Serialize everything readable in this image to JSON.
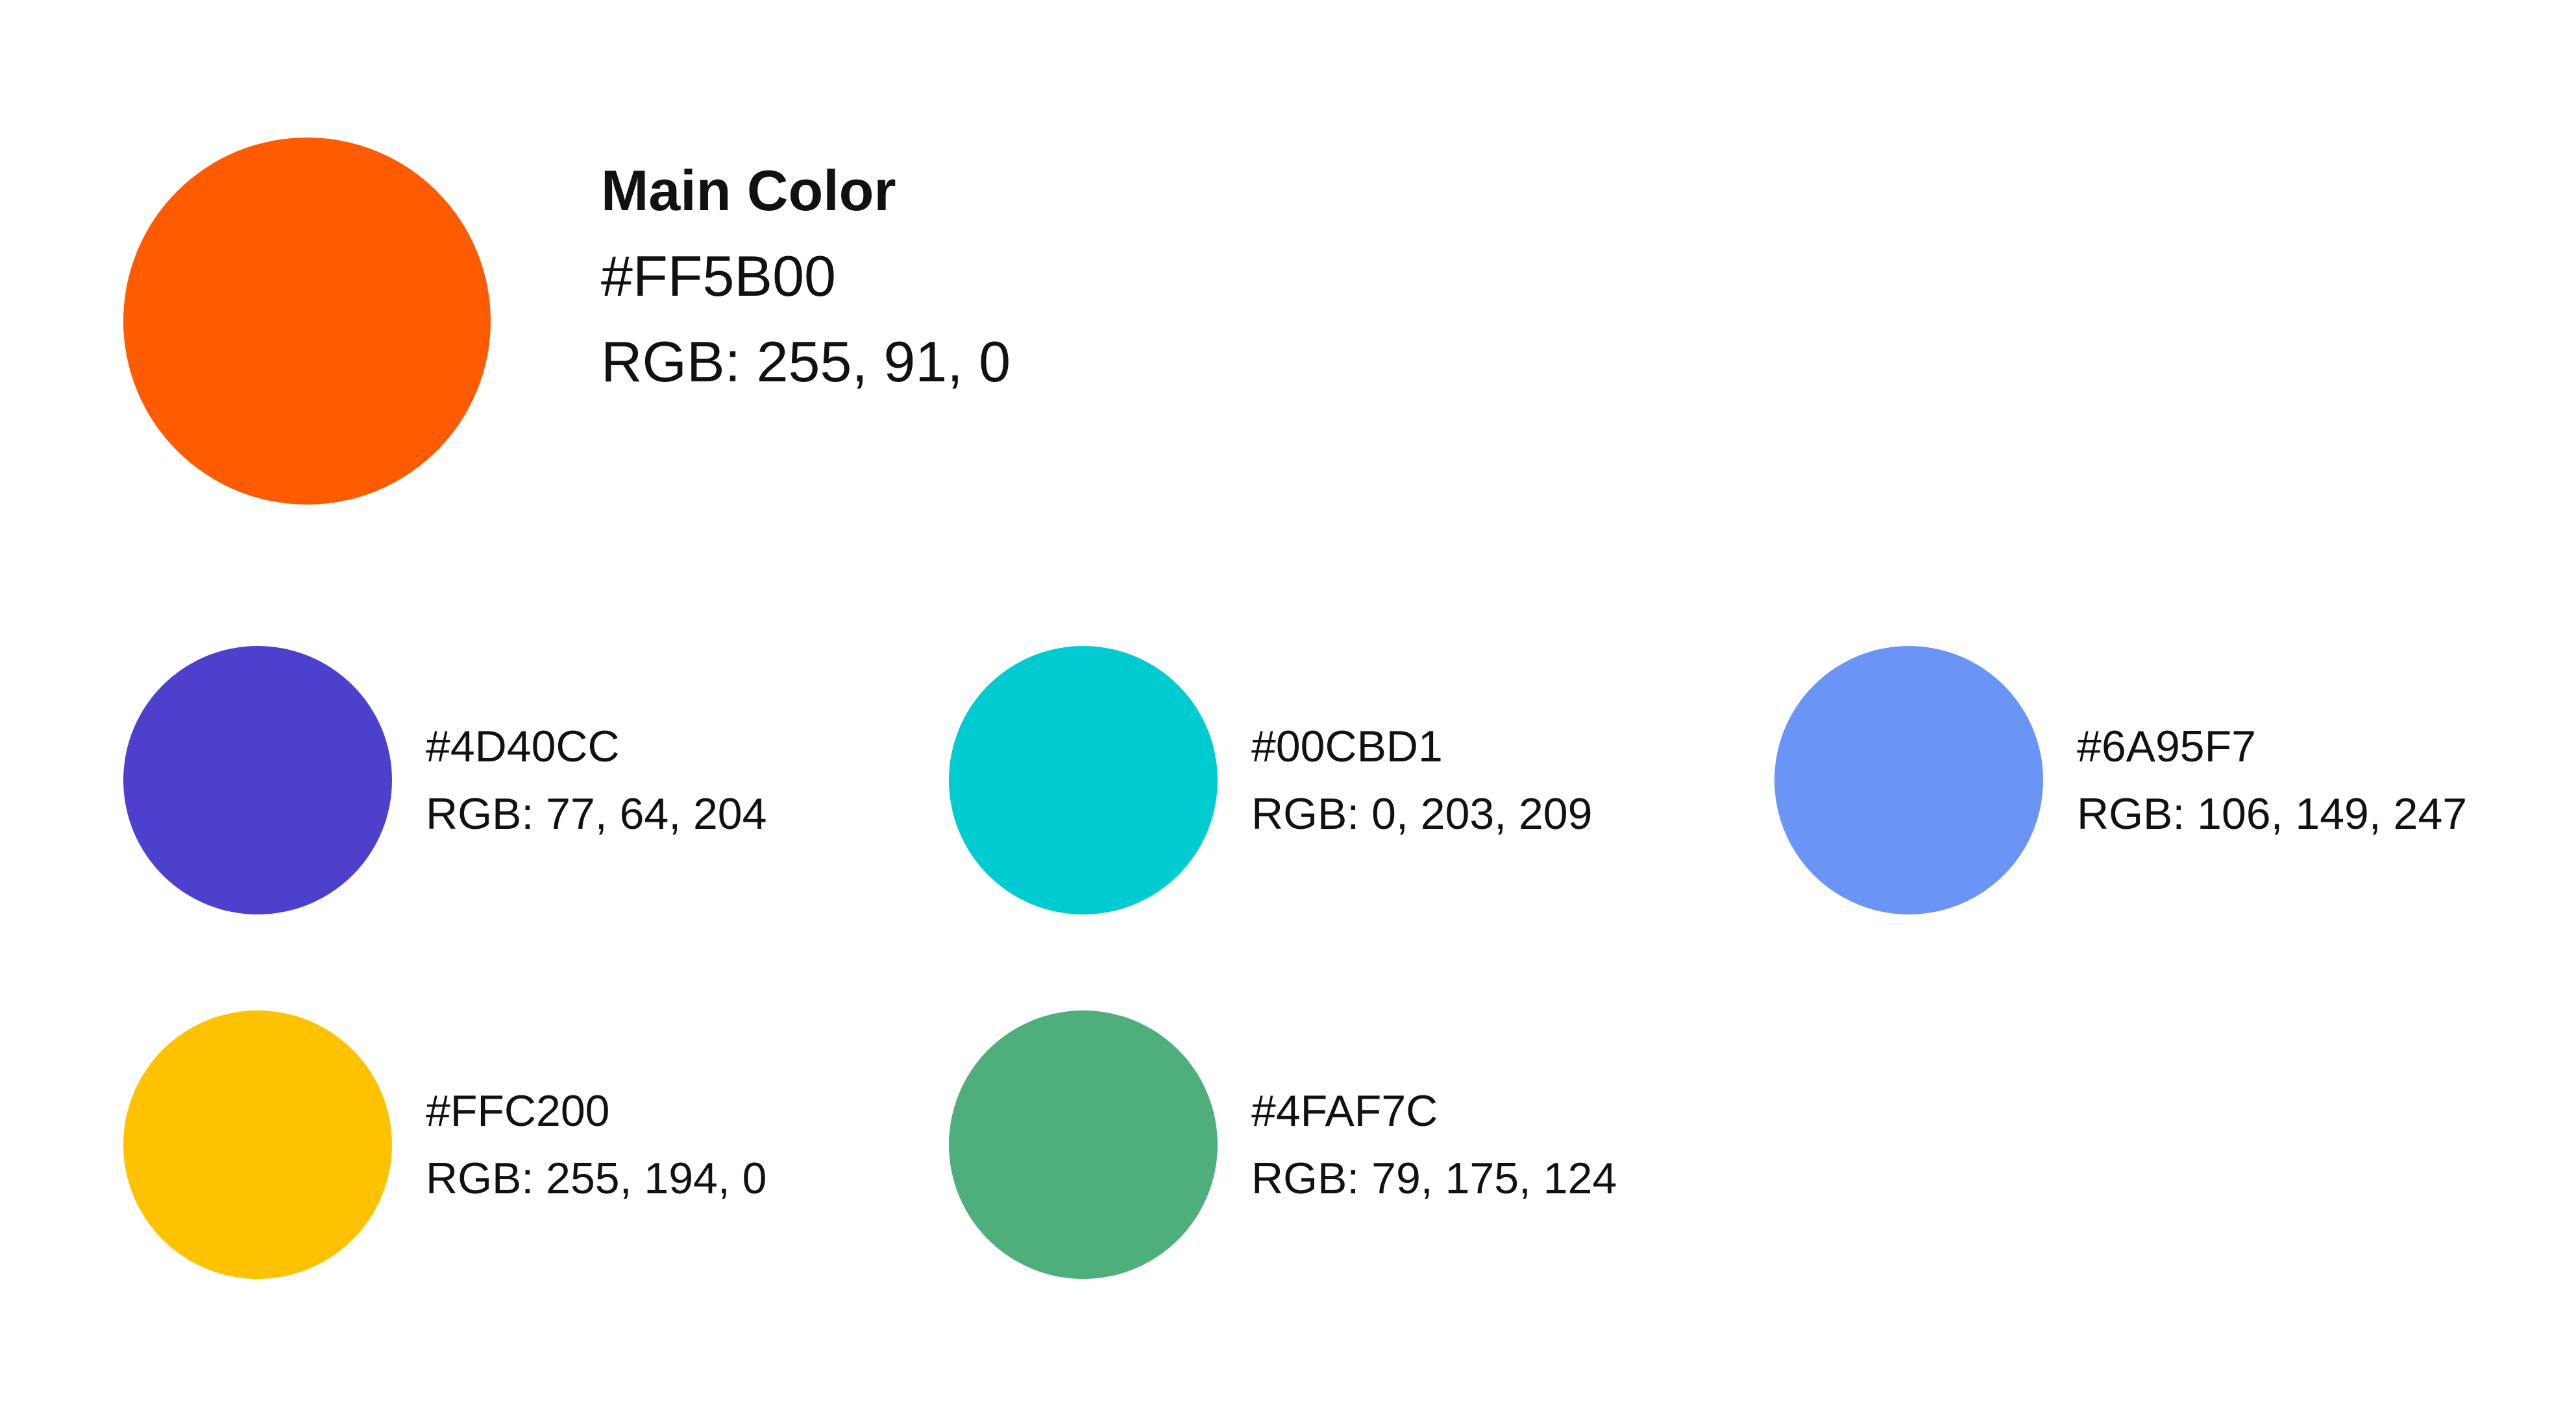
{
  "main": {
    "title": "Main Color",
    "hex": "#FF5B00",
    "rgb": "RGB: 255, 91, 0",
    "color": "#FF5B00"
  },
  "swatches": [
    {
      "hex": "#4D40CC",
      "rgb": "RGB: 77, 64, 204",
      "color": "#4D40CC"
    },
    {
      "hex": "#00CBD1",
      "rgb": "RGB: 0, 203, 209",
      "color": "#00CBD1"
    },
    {
      "hex": "#6A95F7",
      "rgb": "RGB: 106, 149, 247",
      "color": "#6A95F7"
    },
    {
      "hex": "#FFC200",
      "rgb": "RGB: 255, 194, 0",
      "color": "#FFC200"
    },
    {
      "hex": "#4FAF7C",
      "rgb": "RGB: 79, 175, 124",
      "color": "#4FAF7C"
    }
  ]
}
